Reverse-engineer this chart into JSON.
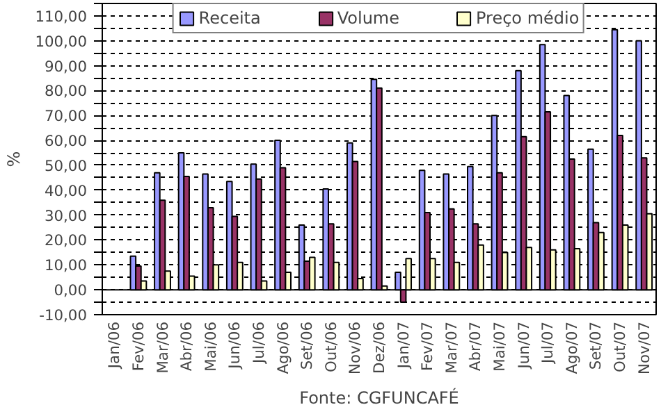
{
  "chart_data": {
    "type": "bar",
    "ylabel": "%",
    "annotations": [
      "Fonte: CGFUNCAFÉ"
    ],
    "categories": [
      "Jan/06",
      "Fev/06",
      "Mar/06",
      "Abr/06",
      "Mai/06",
      "Jun/06",
      "Jul/06",
      "Ago/06",
      "Set/06",
      "Out/06",
      "Nov/06",
      "Dez/06",
      "Jan/07",
      "Fev/07",
      "Mar/07",
      "Abr/07",
      "Mai/07",
      "Jun/07",
      "Jul/07",
      "Ago/07",
      "Set/07",
      "Out/07",
      "Nov/07"
    ],
    "series": [
      {
        "name": "Receita",
        "color": "#9999ff",
        "values": [
          null,
          13.5,
          47,
          55,
          46.5,
          43.5,
          50.5,
          60,
          26,
          40.5,
          59,
          84.5,
          7,
          48,
          46.5,
          49.5,
          70,
          88,
          98.5,
          78,
          56.5,
          104.5,
          100
        ]
      },
      {
        "name": "Volume",
        "color": "#993366",
        "values": [
          null,
          9.5,
          36,
          45.5,
          33,
          29.5,
          44.5,
          49,
          11.5,
          26.5,
          51.5,
          81,
          -5,
          31,
          32.5,
          26.5,
          47,
          61.5,
          71.5,
          52.5,
          27,
          62,
          53
        ]
      },
      {
        "name": "Preço médio",
        "color": "#ffffcc",
        "values": [
          null,
          3.5,
          7.5,
          5.5,
          10,
          11,
          3.5,
          7,
          13,
          11,
          4.5,
          1.5,
          12.5,
          12.5,
          11,
          18,
          15,
          17,
          16,
          16.5,
          23,
          26,
          30.5
        ]
      }
    ],
    "ylim": [
      -10,
      115
    ],
    "yticks": [
      {
        "value": -10,
        "label": "-10,00"
      },
      {
        "value": -5,
        "label": null
      },
      {
        "value": 0,
        "label": "0,00"
      },
      {
        "value": 5,
        "label": null
      },
      {
        "value": 10,
        "label": "10,00"
      },
      {
        "value": 15,
        "label": null
      },
      {
        "value": 20,
        "label": "20,00"
      },
      {
        "value": 25,
        "label": null
      },
      {
        "value": 30,
        "label": "30,00"
      },
      {
        "value": 35,
        "label": null
      },
      {
        "value": 40,
        "label": "40,00"
      },
      {
        "value": 45,
        "label": null
      },
      {
        "value": 50,
        "label": "50,00"
      },
      {
        "value": 55,
        "label": null
      },
      {
        "value": 60,
        "label": "60,00"
      },
      {
        "value": 65,
        "label": null
      },
      {
        "value": 70,
        "label": "70,00"
      },
      {
        "value": 75,
        "label": null
      },
      {
        "value": 80,
        "label": "80,00"
      },
      {
        "value": 85,
        "label": null
      },
      {
        "value": 90,
        "label": "90,00"
      },
      {
        "value": 95,
        "label": null
      },
      {
        "value": 100,
        "label": "100,00"
      },
      {
        "value": 105,
        "label": null
      },
      {
        "value": 110,
        "label": "110,00"
      },
      {
        "value": 115,
        "label": null
      }
    ],
    "grid": "y",
    "legend": "top"
  }
}
